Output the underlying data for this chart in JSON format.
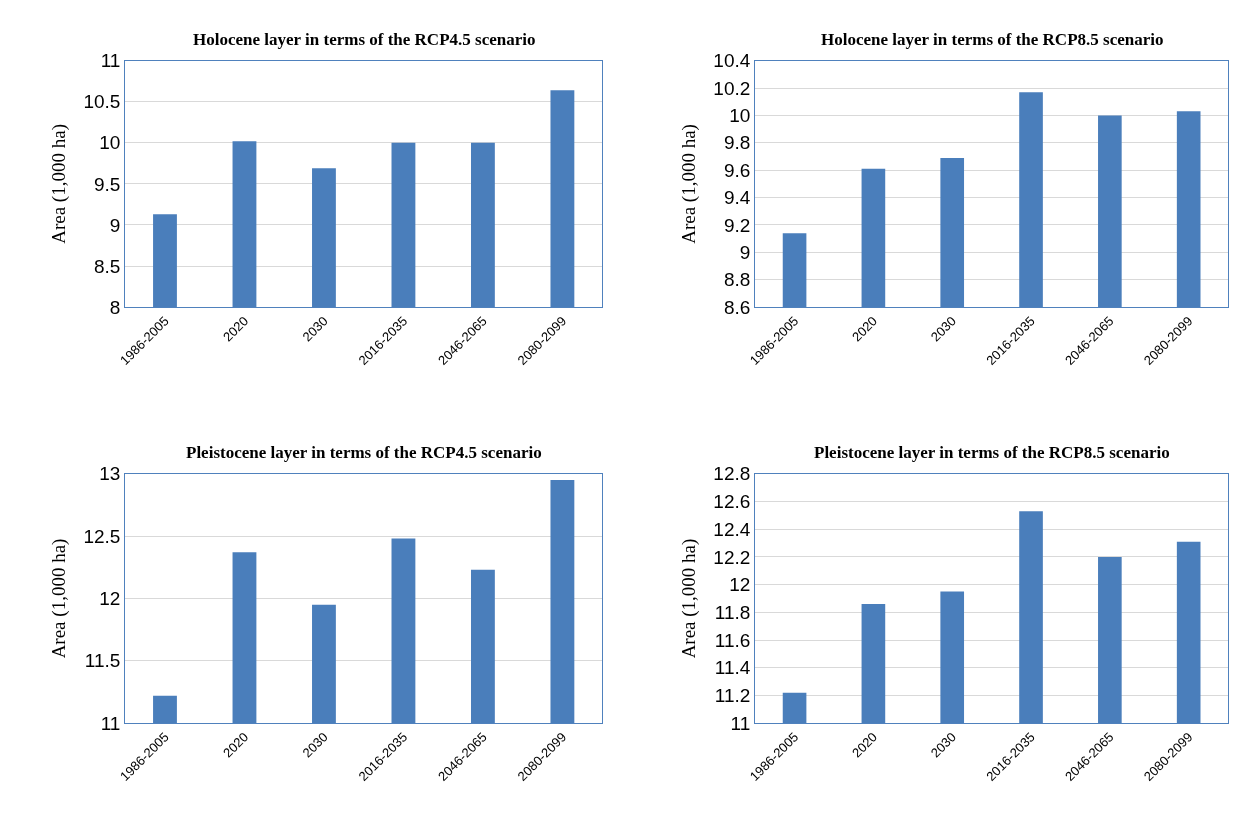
{
  "chart_data": [
    {
      "type": "bar",
      "title": "Holocene layer in terms of the RCP4.5 scenario",
      "ylabel": "Area (1,000 ha)",
      "categories": [
        "1986-2005",
        "2020",
        "2030",
        "2016-2035",
        "2046-2065",
        "2080-2099"
      ],
      "values": [
        9.13,
        10.02,
        9.69,
        10.0,
        10.0,
        10.64
      ],
      "color": "#4a7ebb",
      "ylim": [
        8,
        11
      ],
      "yticks": [
        8,
        8.5,
        9,
        9.5,
        10,
        10.5,
        11
      ],
      "grid": "y"
    },
    {
      "type": "bar",
      "title": "Holocene layer in terms of the RCP8.5 scenario",
      "ylabel": "Area (1,000 ha)",
      "categories": [
        "1986-2005",
        "2020",
        "2030",
        "2016-2035",
        "2046-2065",
        "2080-2099"
      ],
      "values": [
        9.14,
        9.61,
        9.69,
        10.17,
        10.0,
        10.03
      ],
      "color": "#4a7ebb",
      "ylim": [
        8.6,
        10.4
      ],
      "yticks": [
        8.6,
        8.8,
        9,
        9.2,
        9.4,
        9.6,
        9.8,
        10,
        10.2,
        10.4
      ],
      "grid": "y"
    },
    {
      "type": "bar",
      "title": "Pleistocene layer in terms of the RCP4.5 scenario",
      "ylabel": "Area (1,000 ha)",
      "categories": [
        "1986-2005",
        "2020",
        "2030",
        "2016-2035",
        "2046-2065",
        "2080-2099"
      ],
      "values": [
        11.22,
        12.37,
        11.95,
        12.48,
        12.23,
        12.95
      ],
      "color": "#4a7ebb",
      "ylim": [
        11,
        13
      ],
      "yticks": [
        11,
        11.5,
        12,
        12.5,
        13
      ],
      "grid": "y"
    },
    {
      "type": "bar",
      "title": "Pleistocene layer in terms of the RCP8.5 scenario",
      "ylabel": "Area (1,000 ha)",
      "categories": [
        "1986-2005",
        "2020",
        "2030",
        "2016-2035",
        "2046-2065",
        "2080-2099"
      ],
      "values": [
        11.22,
        11.86,
        11.95,
        12.53,
        12.2,
        12.31
      ],
      "color": "#4a7ebb",
      "ylim": [
        11,
        12.8
      ],
      "yticks": [
        11,
        11.2,
        11.4,
        11.6,
        11.8,
        12,
        12.2,
        12.4,
        12.6,
        12.8
      ],
      "grid": "y"
    }
  ]
}
